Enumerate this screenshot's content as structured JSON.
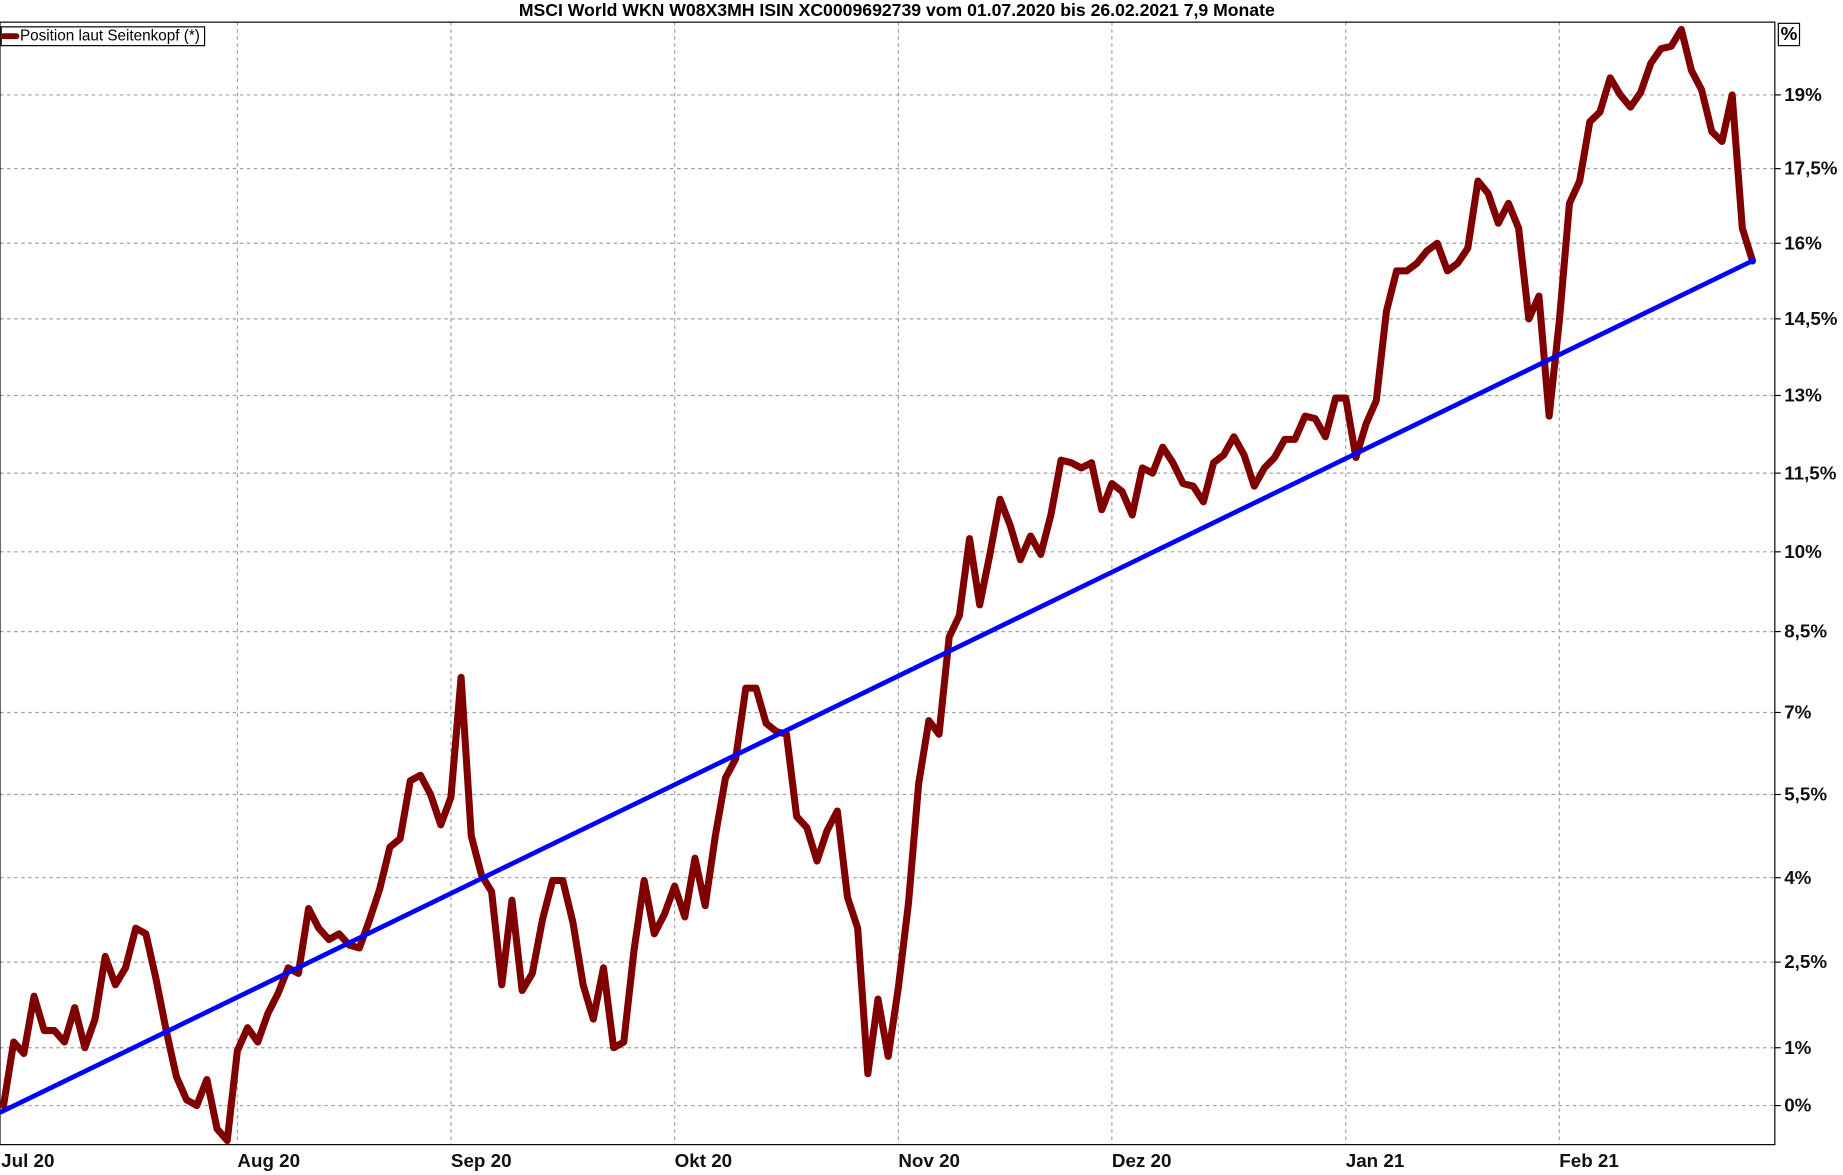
{
  "chart_data": {
    "type": "line",
    "title": "MSCI World WKN W08X3MH ISIN XC0009692739 vom 01.07.2020 bis 26.02.2021 7,9 Monate",
    "y_unit_label": "%",
    "log_scale": true,
    "grid": true,
    "legend": "upper left",
    "ylim": [
      -0.67,
      20.5
    ],
    "yticks": [
      {
        "value": 0,
        "label": "0%"
      },
      {
        "value": 1,
        "label": "1%"
      },
      {
        "value": 2.5,
        "label": "2,5%"
      },
      {
        "value": 4,
        "label": "4%"
      },
      {
        "value": 5.5,
        "label": "5,5%"
      },
      {
        "value": 7,
        "label": "7%"
      },
      {
        "value": 8.5,
        "label": "8,5%"
      },
      {
        "value": 10,
        "label": "10%"
      },
      {
        "value": 11.5,
        "label": "11,5%"
      },
      {
        "value": 13,
        "label": "13%"
      },
      {
        "value": 14.5,
        "label": "14,5%"
      },
      {
        "value": 16,
        "label": "16%"
      },
      {
        "value": 17.5,
        "label": "17,5%"
      },
      {
        "value": 19,
        "label": "19%"
      }
    ],
    "categories": [
      "Jul 20",
      null,
      null,
      null,
      null,
      null,
      null,
      null,
      null,
      null,
      null,
      null,
      null,
      null,
      null,
      null,
      null,
      null,
      null,
      null,
      null,
      null,
      null,
      "Aug 20",
      null,
      null,
      null,
      null,
      null,
      null,
      null,
      null,
      null,
      null,
      null,
      null,
      null,
      null,
      null,
      null,
      null,
      null,
      null,
      null,
      "Sep 20",
      null,
      null,
      null,
      null,
      null,
      null,
      null,
      null,
      null,
      null,
      null,
      null,
      null,
      null,
      null,
      null,
      null,
      null,
      null,
      null,
      null,
      "Okt 20",
      null,
      null,
      null,
      null,
      null,
      null,
      null,
      null,
      null,
      null,
      null,
      null,
      null,
      null,
      null,
      null,
      null,
      null,
      null,
      null,
      null,
      "Nov 20",
      null,
      null,
      null,
      null,
      null,
      null,
      null,
      null,
      null,
      null,
      null,
      null,
      null,
      null,
      null,
      null,
      null,
      null,
      null,
      null,
      "Dez 20",
      null,
      null,
      null,
      null,
      null,
      null,
      null,
      null,
      null,
      null,
      null,
      null,
      null,
      null,
      null,
      null,
      null,
      null,
      null,
      null,
      null,
      null,
      "Jan 21",
      null,
      null,
      null,
      null,
      null,
      null,
      null,
      null,
      null,
      null,
      null,
      null,
      null,
      null,
      null,
      null,
      null,
      null,
      null,
      null,
      "Feb 21",
      null,
      null,
      null,
      null,
      null,
      null,
      null,
      null,
      null,
      null,
      null,
      null,
      null,
      null,
      null,
      null,
      null,
      null,
      null
    ],
    "series": [
      {
        "name": "Position laut Seitenkopf (*)",
        "color": "#800000",
        "values": [
          0,
          1.1,
          0.9,
          1.9,
          1.3,
          1.3,
          1.1,
          1.7,
          1.0,
          1.5,
          2.6,
          2.1,
          2.4,
          3.1,
          3.0,
          2.2,
          1.3,
          0.5,
          0.1,
          0.0,
          0.45,
          -0.4,
          -0.6,
          0.95,
          1.35,
          1.1,
          1.6,
          1.95,
          2.4,
          2.3,
          3.45,
          3.1,
          2.9,
          3.0,
          2.8,
          2.75,
          3.25,
          3.8,
          4.55,
          4.7,
          5.75,
          5.85,
          5.5,
          4.95,
          5.45,
          7.65,
          4.75,
          4.05,
          3.75,
          2.1,
          3.6,
          2.0,
          2.3,
          3.25,
          3.95,
          3.95,
          3.2,
          2.1,
          1.5,
          2.4,
          1.0,
          1.1,
          2.7,
          3.95,
          3.0,
          3.35,
          3.85,
          3.3,
          4.35,
          3.5,
          4.75,
          5.8,
          6.15,
          7.45,
          7.45,
          6.8,
          6.65,
          6.6,
          5.1,
          4.9,
          4.3,
          4.85,
          5.2,
          3.65,
          3.1,
          0.55,
          1.85,
          0.85,
          2.05,
          3.55,
          5.7,
          6.85,
          6.6,
          8.4,
          8.8,
          10.25,
          9.0,
          9.95,
          11.0,
          10.5,
          9.85,
          10.3,
          9.95,
          10.7,
          11.75,
          11.7,
          11.6,
          11.7,
          10.8,
          11.3,
          11.15,
          10.7,
          11.6,
          11.5,
          12.0,
          11.7,
          11.3,
          11.25,
          10.95,
          11.7,
          11.85,
          12.2,
          11.85,
          11.25,
          11.6,
          11.8,
          12.15,
          12.15,
          12.6,
          12.55,
          12.2,
          12.95,
          12.95,
          11.8,
          12.45,
          12.9,
          14.65,
          15.45,
          15.45,
          15.6,
          15.85,
          16.0,
          15.45,
          15.6,
          15.9,
          17.25,
          17.0,
          16.4,
          16.8,
          16.3,
          14.5,
          14.95,
          12.6,
          14.45,
          16.8,
          17.25,
          18.45,
          18.65,
          19.35,
          19.0,
          18.75,
          19.05,
          19.65,
          19.95,
          20.0,
          20.35,
          19.5,
          19.1,
          18.25,
          18.05,
          19.0,
          16.3,
          15.65
        ]
      }
    ],
    "trend": {
      "color": "#0000ff",
      "values": [
        -0.12,
        15.65
      ]
    }
  }
}
